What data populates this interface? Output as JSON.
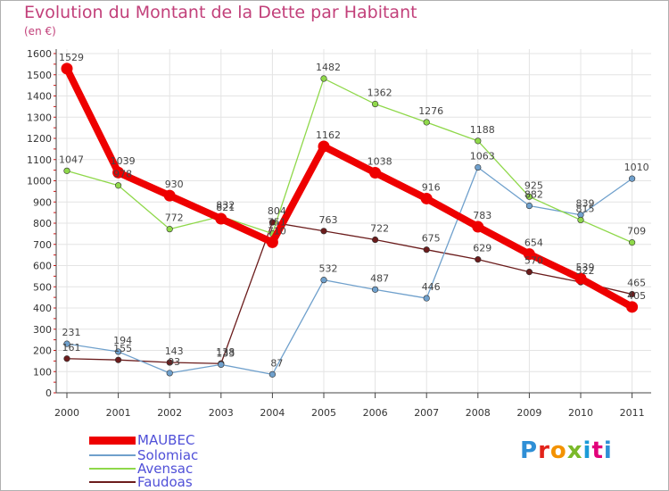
{
  "title": "Evolution du Montant de la Dette par Habitant",
  "subtitle": "(en €)",
  "logo": {
    "text": "Proxiti",
    "colors": [
      "#2f8fd6",
      "#e2231a",
      "#f39200",
      "#7ab929",
      "#1b9bd7",
      "#e2007a",
      "#2f8fd6"
    ]
  },
  "chart_data": {
    "type": "line",
    "title": "Evolution du Montant de la Dette par Habitant",
    "ylabel": "(en €)",
    "xlabel": "",
    "x": [
      "2000",
      "2001",
      "2002",
      "2003",
      "2004",
      "2005",
      "2006",
      "2007",
      "2008",
      "2009",
      "2010",
      "2011"
    ],
    "ylim": [
      0,
      1600
    ],
    "yticks": [
      0,
      100,
      200,
      300,
      400,
      500,
      600,
      700,
      800,
      900,
      1000,
      1100,
      1200,
      1300,
      1400,
      1500,
      1600
    ],
    "grid": true,
    "legend_position": "bottom-left",
    "series": [
      {
        "name": "Faudoas",
        "color": "#6b1c1c",
        "values": [
          161,
          155,
          143,
          138,
          804,
          763,
          722,
          675,
          629,
          570,
          522,
          465
        ]
      },
      {
        "name": "Solomiac",
        "color": "#6fa0cc",
        "values": [
          231,
          194,
          93,
          133,
          87,
          532,
          487,
          446,
          1063,
          882,
          839,
          1010
        ]
      },
      {
        "name": "Avensac",
        "color": "#8fd84a",
        "values": [
          1047,
          978,
          772,
          832,
          751,
          1482,
          1362,
          1276,
          1188,
          925,
          815,
          709
        ]
      },
      {
        "name": "MAUBEC",
        "color": "#ee0000",
        "values": [
          1529,
          1039,
          930,
          821,
          710,
          1162,
          1038,
          916,
          783,
          654,
          539,
          405
        ]
      }
    ],
    "legend": [
      "MAUBEC",
      "Solomiac",
      "Avensac",
      "Faudoas"
    ]
  }
}
